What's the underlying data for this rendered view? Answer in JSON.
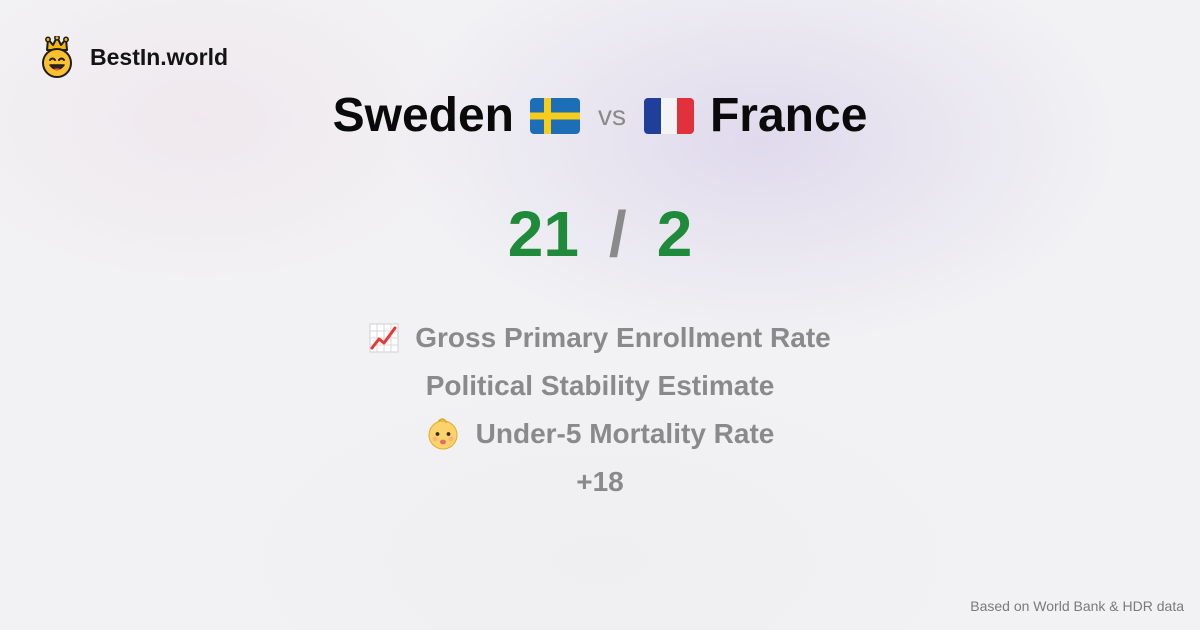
{
  "brand": {
    "name": "BestIn.world",
    "logo_icon": "crowned-smiley-icon"
  },
  "comparison": {
    "left_country": "Sweden",
    "left_flag": "sweden-flag-icon",
    "vs_label": "vs",
    "right_country": "France",
    "right_flag": "france-flag-icon"
  },
  "score": {
    "left": "21",
    "separator": "/",
    "right": "2"
  },
  "metrics": [
    {
      "icon": "chart-increasing-icon",
      "label": "Gross Primary Enrollment Rate"
    },
    {
      "icon": "",
      "label": "Political Stability Estimate"
    },
    {
      "icon": "baby-icon",
      "label": "Under-5 Mortality Rate"
    },
    {
      "icon": "",
      "label": "+18"
    }
  ],
  "footer": {
    "source": "Based on World Bank & HDR data"
  },
  "colors": {
    "score": "#1e8a3a",
    "muted": "#8a8a8a",
    "text": "#0a0a0a"
  }
}
